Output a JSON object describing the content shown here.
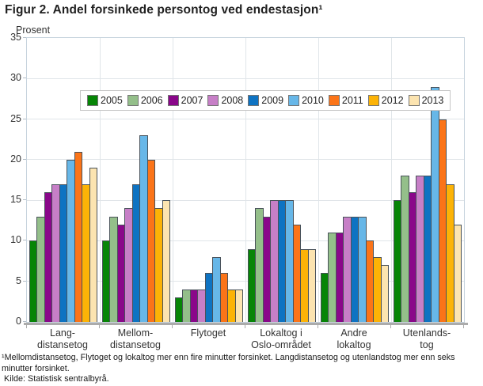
{
  "page": {
    "title": "Figur 2. Andel forsinkede persontog ved endestasjon¹",
    "footnote": "¹Mellomdistansetog, Flytoget og lokaltog mer enn fire minutter forsinket. Langdistansetog og utenlandstog mer enn seks minutter forsinket.",
    "source": "Kilde: Statistisk sentralbyrå."
  },
  "chart_data": {
    "type": "bar",
    "title": "Figur 2. Andel forsinkede persontog ved endestasjon¹",
    "ylabel": "Prosent",
    "ylim": [
      0,
      35
    ],
    "yticks": [
      0,
      5,
      10,
      15,
      20,
      25,
      30,
      35
    ],
    "grid": true,
    "legend_position": "top-inside-horizontal",
    "categories": [
      "Lang-\ndistansetog",
      "Mellom-\ndistansetog",
      "Flytoget",
      "Lokaltog i\nOslo-området",
      "Andre\nlokaltog",
      "Utenlands-\ntog"
    ],
    "series": [
      {
        "name": "2005",
        "color": "#068506",
        "values": [
          10,
          10,
          3,
          9,
          6,
          15
        ]
      },
      {
        "name": "2006",
        "color": "#94bf8a",
        "values": [
          13,
          13,
          4,
          14,
          11,
          18
        ]
      },
      {
        "name": "2007",
        "color": "#8a078a",
        "values": [
          16,
          12,
          4,
          13,
          11,
          16
        ]
      },
      {
        "name": "2008",
        "color": "#c77fc7",
        "values": [
          17,
          14,
          4,
          15,
          13,
          18
        ]
      },
      {
        "name": "2009",
        "color": "#0e73c2",
        "values": [
          17,
          17,
          6,
          15,
          13,
          18
        ]
      },
      {
        "name": "2010",
        "color": "#67b7e8",
        "values": [
          20,
          23,
          8,
          15,
          13,
          29
        ]
      },
      {
        "name": "2011",
        "color": "#fb7418",
        "values": [
          21,
          20,
          6,
          12,
          10,
          25
        ]
      },
      {
        "name": "2012",
        "color": "#fcb306",
        "values": [
          17,
          14,
          4,
          9,
          8,
          17
        ]
      },
      {
        "name": "2013",
        "color": "#fce4b0",
        "values": [
          19,
          15,
          4,
          9,
          7,
          12
        ]
      }
    ]
  }
}
